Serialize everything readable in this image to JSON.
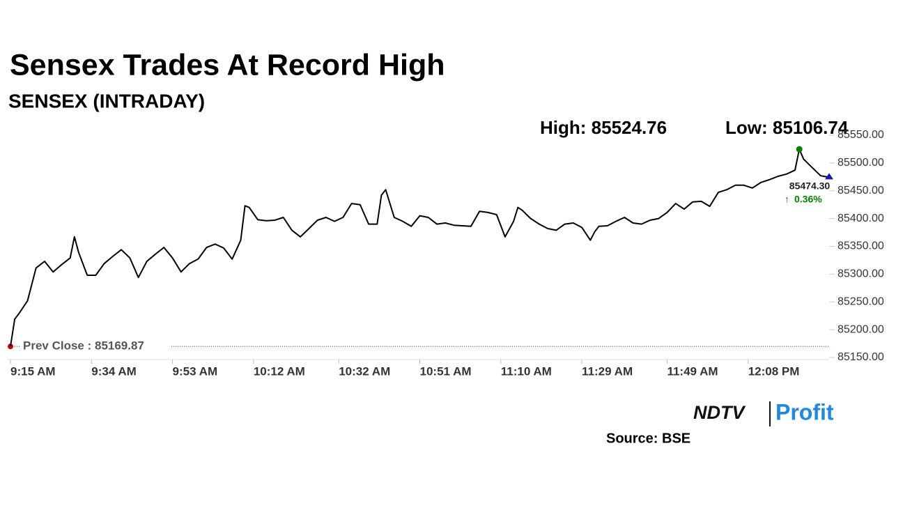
{
  "chart_data": {
    "type": "line",
    "title": "Sensex Trades At Record High",
    "subtitle": "SENSEX (INTRADAY)",
    "high_label": "High: 85524.76",
    "low_label": "Low: 85106.74",
    "prev_close": 85169.87,
    "prev_close_label": "Prev Close : 85169.87",
    "last": {
      "value": 85474.3,
      "label": "85474.30"
    },
    "change": "0.36%",
    "x": [
      0,
      1,
      2,
      4,
      6,
      8,
      10,
      12,
      14,
      15,
      16,
      18,
      20,
      22,
      24,
      26,
      28,
      30,
      32,
      34,
      36,
      38,
      40,
      42,
      44,
      46,
      48,
      50,
      52,
      54,
      55,
      56,
      58,
      60,
      62,
      64,
      66,
      68,
      70,
      72,
      74,
      76,
      78,
      80,
      82,
      84,
      86,
      87,
      88,
      90,
      92,
      94,
      96,
      98,
      100,
      102,
      104,
      106,
      108,
      110,
      112,
      114,
      116,
      118,
      119,
      120,
      122,
      124,
      126,
      128,
      130,
      132,
      134,
      136,
      137,
      138,
      140,
      142,
      144,
      146,
      148,
      150,
      152,
      154,
      156,
      158,
      160,
      162,
      164,
      166,
      168,
      170,
      172,
      174,
      176,
      178,
      180,
      182,
      184,
      185,
      186,
      188,
      190,
      192
    ],
    "series": [
      {
        "name": "SENSEX",
        "color": "#000000",
        "values": [
          85170,
          85219,
          85229,
          85252,
          85311,
          85323,
          85304,
          85317,
          85329,
          85367,
          85339,
          85298,
          85298,
          85319,
          85332,
          85344,
          85329,
          85294,
          85323,
          85336,
          85348,
          85329,
          85304,
          85319,
          85327,
          85348,
          85354,
          85347,
          85327,
          85361,
          85423,
          85420,
          85398,
          85396,
          85397,
          85402,
          85379,
          85367,
          85382,
          85397,
          85402,
          85395,
          85402,
          85427,
          85425,
          85390,
          85390,
          85442,
          85452,
          85402,
          85395,
          85386,
          85405,
          85402,
          85390,
          85392,
          85388,
          85387,
          85386,
          85413,
          85411,
          85407,
          85367,
          85395,
          85420,
          85415,
          85400,
          85390,
          85382,
          85379,
          85390,
          85392,
          85384,
          85361,
          85376,
          85386,
          85387,
          85395,
          85402,
          85392,
          85390,
          85397,
          85400,
          85411,
          85427,
          85417,
          85430,
          85431,
          85422,
          85447,
          85452,
          85460,
          85460,
          85455,
          85465,
          85470,
          85476,
          85480,
          85487,
          85524.76,
          85507,
          85492,
          85477,
          85474.3
        ]
      }
    ],
    "xlim": [
      0,
      192
    ],
    "xticks": [
      {
        "value": 0,
        "label": "9:15 AM"
      },
      {
        "value": 19,
        "label": "9:34 AM"
      },
      {
        "value": 38,
        "label": "9:53 AM"
      },
      {
        "value": 57,
        "label": "10:12 AM"
      },
      {
        "value": 77,
        "label": "10:32 AM"
      },
      {
        "value": 96,
        "label": "10:51 AM"
      },
      {
        "value": 115,
        "label": "11:10 AM"
      },
      {
        "value": 134,
        "label": "11:29 AM"
      },
      {
        "value": 154,
        "label": "11:49 AM"
      },
      {
        "value": 173,
        "label": "12:08 PM"
      }
    ],
    "ylim": [
      85150,
      85550
    ],
    "yticks": [
      {
        "value": 85150,
        "label": "85150.00"
      },
      {
        "value": 85200,
        "label": "85200.00"
      },
      {
        "value": 85250,
        "label": "85250.00"
      },
      {
        "value": 85300,
        "label": "85300.00"
      },
      {
        "value": 85350,
        "label": "85350.00"
      },
      {
        "value": 85400,
        "label": "85400.00"
      },
      {
        "value": 85450,
        "label": "85450.00"
      },
      {
        "value": 85500,
        "label": "85500.00"
      },
      {
        "value": 85550,
        "label": "85550.00"
      }
    ],
    "high_color": "#008000",
    "last_color": "#1a1aa6",
    "prev_close_color": "#cc0000",
    "change_color": "#008000"
  },
  "logo": [
    "NDTV",
    "Profit"
  ],
  "source": "Source: BSE"
}
